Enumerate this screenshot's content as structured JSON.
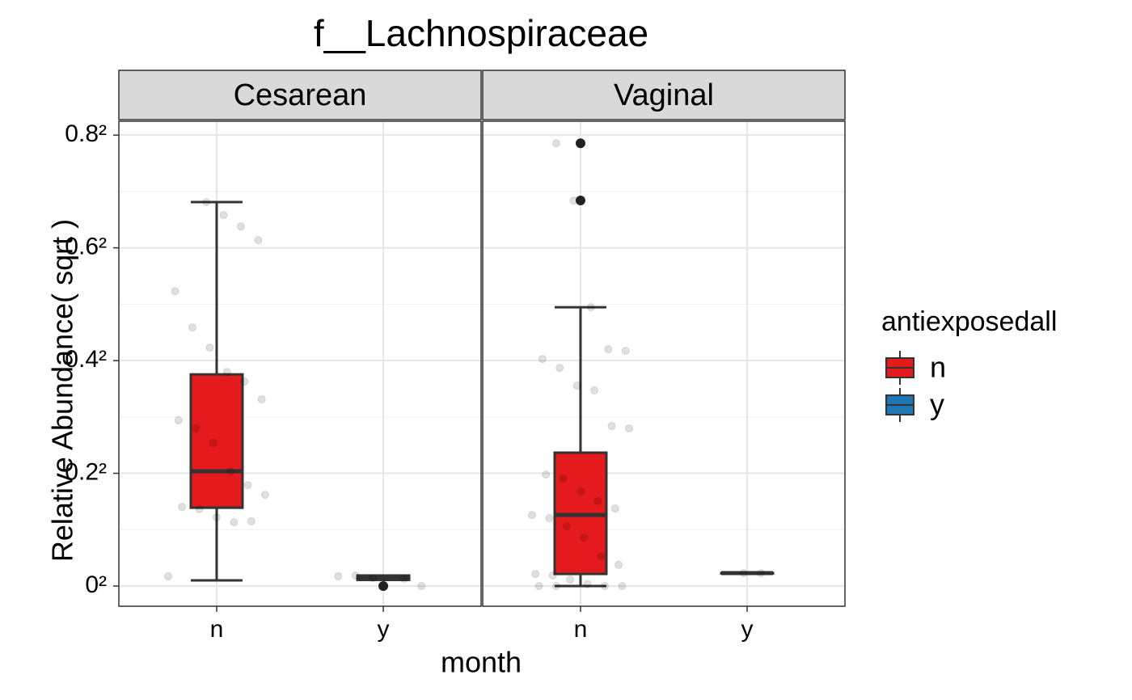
{
  "chart_data": {
    "type": "box",
    "title": "f__Lachnospiraceae",
    "x_label": "month",
    "y_label": "Relative Abundance( sqrt )",
    "scale": "sqrt",
    "categories": [
      "n",
      "y"
    ],
    "legend_title": "antiexposedall",
    "legend": "right",
    "grid": true,
    "series": [
      {
        "name": "n",
        "color": "#e41a1c"
      },
      {
        "name": "y",
        "color": "#1f78b4"
      }
    ],
    "ylim": [
      0,
      0.68
    ],
    "yticks": [
      {
        "value": 0,
        "label": "0²"
      },
      {
        "value": 0.04,
        "label": "0.2²"
      },
      {
        "value": 0.16,
        "label": "0.4²"
      },
      {
        "value": 0.36,
        "label": "0.6²"
      },
      {
        "value": 0.64,
        "label": "0.8²"
      }
    ],
    "yminor": [
      0.01,
      0.09,
      0.25,
      0.49
    ],
    "panels": [
      {
        "title": "Cesarean",
        "boxes": [
          {
            "min": 0.0001,
            "q1": 0.0193,
            "median": 0.0415,
            "q3": 0.141,
            "max": 0.464,
            "outliers": [],
            "points": [
              0.0003,
              0.0132,
              0.0128,
              0.0149,
              0.0186,
              0.0197,
              0.0262,
              0.0321,
              0.0414,
              0.0644,
              0.0782,
              0.0864,
              0.1097,
              0.1316,
              0.1443,
              0.1789,
              0.2105,
              0.2738,
              0.3765,
              0.407,
              0.4331,
              0.4638
            ]
          },
          {
            "min": 0.00012,
            "q1": 0.00012,
            "median": 0.00021,
            "q3": 0.00035,
            "max": 0.00035,
            "outliers": [
              0
            ],
            "points": [
              0.0002,
              0.00035,
              0.0003,
              0,
              0.00017
            ]
          }
        ]
      },
      {
        "title": "Vaginal",
        "boxes": [
          {
            "min": 0,
            "q1": 0.00046,
            "median": 0.0159,
            "q3": 0.056,
            "max": 0.2446,
            "outliers": [
              0.468,
              0.617
            ],
            "points": [
              0,
              0,
              0,
              0,
              1e-05,
              0.00013,
              0.00035,
              0.00046,
              0.0014,
              0.0028,
              0.0074,
              0.0113,
              0.0145,
              0.0159,
              0.0189,
              0.0227,
              0.0281,
              0.0364,
              0.0391,
              0.0782,
              0.0806,
              0.1204,
              0.1264,
              0.1498,
              0.1623,
              0.1741,
              0.1765,
              0.2446,
              0.4677,
              0.6173
            ]
          },
          {
            "min": 0.00053,
            "q1": 0.00053,
            "median": 0.00053,
            "q3": 0.00053,
            "max": 0.00053,
            "outliers": [],
            "points": [
              0.00053,
              0.00053
            ]
          }
        ]
      }
    ]
  }
}
